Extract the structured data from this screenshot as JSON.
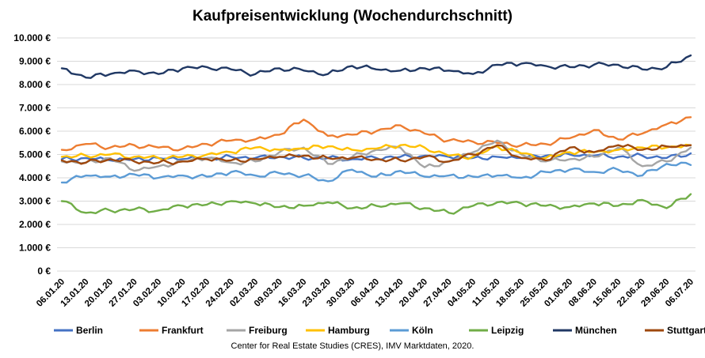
{
  "source_note": "Center for Real Estate Studies (CRES), IMV Marktdaten, 2020.",
  "chart_data": {
    "type": "line",
    "title": "Kaufpreisentwicklung (Wochendurchschnitt)",
    "xlabel": "",
    "ylabel": "",
    "ylim": [
      0,
      10000
    ],
    "yticks": [
      0,
      1000,
      2000,
      3000,
      4000,
      5000,
      6000,
      7000,
      8000,
      9000,
      10000
    ],
    "ytick_labels": [
      "0 €",
      "1.000 €",
      "2.000 €",
      "3.000 €",
      "4.000 €",
      "5.000 €",
      "6.000 €",
      "7.000 €",
      "8.000 €",
      "9.000 €",
      "10.000 €"
    ],
    "grid": true,
    "legend_position": "bottom",
    "x_tick_labels": [
      "06.01.20",
      "13.01.20",
      "20.01.20",
      "27.01.20",
      "03.02.20",
      "10.02.20",
      "17.02.20",
      "24.02.20",
      "02.03.20",
      "09.03.20",
      "16.03.20",
      "23.03.20",
      "30.03.20",
      "06.04.20",
      "13.04.20",
      "20.04.20",
      "27.04.20",
      "04.05.20",
      "11.05.20",
      "18.05.20",
      "25.05.20",
      "01.06.20",
      "08.06.20",
      "15.06.20",
      "22.06.20",
      "29.06.20",
      "06.07.20"
    ],
    "series": [
      {
        "name": "Berlin",
        "color": "#4472C4",
        "values": [
          4800,
          4850,
          4750,
          4800,
          4850,
          4800,
          4850,
          4900,
          4850,
          4900,
          4850,
          4850,
          4800,
          4850,
          4900,
          4950,
          4900,
          4850,
          4900,
          4850,
          4950,
          5000,
          4950,
          4900,
          4950,
          4850,
          5050
        ]
      },
      {
        "name": "Frankfurt",
        "color": "#ED7D31",
        "values": [
          5200,
          5450,
          5300,
          5400,
          5300,
          5250,
          5450,
          5600,
          5650,
          5850,
          6500,
          5800,
          5850,
          6000,
          6250,
          5900,
          5600,
          5550,
          5500,
          5400,
          5450,
          5700,
          6050,
          5650,
          5900,
          6300,
          6600
        ]
      },
      {
        "name": "Freiburg",
        "color": "#A5A5A5",
        "values": [
          4700,
          4650,
          4850,
          4300,
          4500,
          4700,
          4850,
          4650,
          4700,
          5100,
          5300,
          4600,
          4900,
          5200,
          5300,
          4450,
          4700,
          5100,
          5600,
          5000,
          4700,
          4800,
          4900,
          5300,
          4500,
          4700,
          5300
        ]
      },
      {
        "name": "Hamburg",
        "color": "#FFC000",
        "values": [
          4900,
          4950,
          5000,
          4900,
          4850,
          4900,
          5000,
          5100,
          5300,
          5200,
          5250,
          5350,
          5200,
          5250,
          5400,
          5300,
          4950,
          4900,
          5350,
          5050,
          4850,
          5100,
          5100,
          5200,
          5300,
          5300,
          5400
        ]
      },
      {
        "name": "Köln",
        "color": "#5B9BD5",
        "values": [
          3800,
          4100,
          4050,
          4150,
          4000,
          4100,
          4050,
          4250,
          4100,
          4200,
          4100,
          3850,
          4350,
          4050,
          4300,
          4050,
          4100,
          4050,
          4100,
          4000,
          4250,
          4350,
          4250,
          4350,
          4100,
          4600,
          4550
        ]
      },
      {
        "name": "Leipzig",
        "color": "#70AD47",
        "values": [
          3000,
          2500,
          2600,
          2650,
          2600,
          2800,
          2850,
          3000,
          2900,
          2750,
          2800,
          2950,
          2700,
          2800,
          2900,
          2700,
          2500,
          2800,
          2950,
          2900,
          2800,
          2750,
          2900,
          2800,
          3050,
          2700,
          3300
        ]
      },
      {
        "name": "München",
        "color": "#203864",
        "values": [
          8700,
          8300,
          8450,
          8600,
          8450,
          8700,
          8750,
          8650,
          8450,
          8700,
          8600,
          8450,
          8800,
          8650,
          8600,
          8700,
          8600,
          8450,
          8850,
          8900,
          8800,
          8750,
          8850,
          8850,
          8650,
          8750,
          9250
        ]
      },
      {
        "name": "Stuttgart",
        "color": "#9E480E",
        "values": [
          4750,
          4650,
          4800,
          4700,
          4650,
          4700,
          4800,
          4750,
          4800,
          4900,
          4950,
          4850,
          4850,
          4800,
          4750,
          4900,
          4700,
          5000,
          5400,
          4850,
          4750,
          5300,
          5100,
          5400,
          5200,
          5350,
          5400
        ]
      }
    ]
  }
}
